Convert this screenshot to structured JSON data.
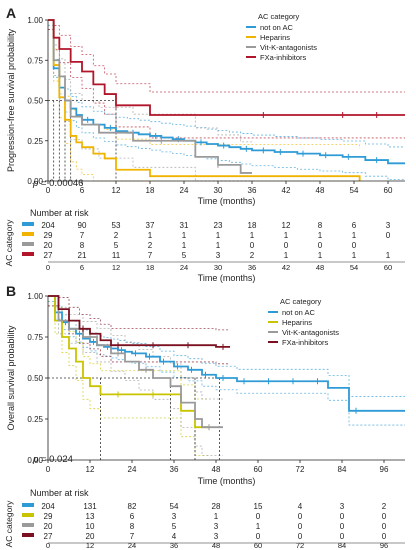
{
  "chart_data": [
    {
      "panel_label": "A",
      "type": "line",
      "subtype": "kaplan-meier",
      "title": "",
      "ylabel": "Progression-free survival probability",
      "xlabel": "Time (months)",
      "xlim": [
        0,
        63
      ],
      "ylim": [
        0,
        1
      ],
      "xticks": [
        0,
        6,
        12,
        18,
        24,
        30,
        36,
        42,
        48,
        54,
        60
      ],
      "yticks": [
        0.0,
        0.25,
        0.5,
        0.75,
        1.0
      ],
      "grid": false,
      "pvalue": "p = 0.00046",
      "legend_title": "AC category",
      "legend_position": "top-right",
      "median_markers_x": [
        1,
        2,
        3,
        4,
        12
      ],
      "series": [
        {
          "name": "not on AC",
          "color": "#2e9bd6",
          "x": [
            0,
            1,
            2,
            3,
            4,
            5,
            6,
            8,
            10,
            12,
            14,
            16,
            18,
            20,
            22,
            24,
            26,
            28,
            30,
            32,
            34,
            36,
            40,
            44,
            48,
            52,
            56,
            60,
            63
          ],
          "y": [
            1.0,
            0.7,
            0.58,
            0.5,
            0.45,
            0.41,
            0.38,
            0.35,
            0.33,
            0.31,
            0.3,
            0.29,
            0.28,
            0.27,
            0.26,
            0.25,
            0.24,
            0.23,
            0.22,
            0.21,
            0.2,
            0.19,
            0.18,
            0.17,
            0.16,
            0.15,
            0.13,
            0.11,
            0.11
          ],
          "censor_x": [
            7,
            11,
            15,
            19,
            23,
            27,
            31,
            35,
            38,
            41,
            45,
            49,
            53,
            58
          ]
        },
        {
          "name": "Heparins",
          "color": "#f0b400",
          "x": [
            0,
            1,
            2,
            3,
            4,
            5,
            6,
            8,
            10,
            12,
            14,
            16,
            18,
            24,
            30,
            36,
            42,
            54,
            55
          ],
          "y": [
            1.0,
            0.72,
            0.52,
            0.38,
            0.28,
            0.24,
            0.21,
            0.17,
            0.14,
            0.07,
            0.07,
            0.07,
            0.03,
            0.03,
            0.03,
            0.03,
            0.03,
            0.03,
            0.0
          ],
          "censor_x": []
        },
        {
          "name": "Vit-K-antagonists",
          "color": "#9a9a9a",
          "x": [
            0,
            1,
            2,
            3,
            4,
            6,
            9,
            12,
            15,
            18,
            24,
            26,
            30,
            34,
            36
          ],
          "y": [
            1.0,
            0.75,
            0.65,
            0.5,
            0.4,
            0.35,
            0.3,
            0.3,
            0.25,
            0.25,
            0.25,
            0.15,
            0.1,
            0.05,
            0.05
          ],
          "censor_x": [
            20,
            30
          ]
        },
        {
          "name": "FXa-inhibitors",
          "color": "#b0152a",
          "x": [
            0,
            1,
            2,
            4,
            6,
            8,
            10,
            12,
            14,
            16,
            18,
            63
          ],
          "y": [
            1.0,
            0.89,
            0.82,
            0.74,
            0.68,
            0.6,
            0.54,
            0.47,
            0.47,
            0.47,
            0.41,
            0.41
          ],
          "censor_x": [
            12,
            38,
            52,
            58
          ]
        }
      ],
      "risk_table": {
        "title": "Number at risk",
        "ylabel": "AC category",
        "time_points": [
          0,
          6,
          12,
          18,
          24,
          30,
          36,
          42,
          48,
          54,
          60
        ],
        "rows": [
          {
            "color": "#2e9bd6",
            "values": [
              "204",
              "90",
              "53",
              "37",
              "31",
              "23",
              "18",
              "12",
              "8",
              "6",
              "3"
            ]
          },
          {
            "color": "#f0b400",
            "values": [
              "29",
              "7",
              "2",
              "1",
              "1",
              "1",
              "1",
              "1",
              "1",
              "1",
              "0"
            ]
          },
          {
            "color": "#9a9a9a",
            "values": [
              "20",
              "8",
              "5",
              "2",
              "1",
              "1",
              "0",
              "0",
              "0",
              "0",
              ""
            ]
          },
          {
            "color": "#b0152a",
            "values": [
              "27",
              "21",
              "11",
              "7",
              "5",
              "3",
              "2",
              "1",
              "1",
              "1",
              "1"
            ]
          }
        ],
        "xlabel": "Time (months)"
      }
    },
    {
      "panel_label": "B",
      "type": "line",
      "subtype": "kaplan-meier",
      "title": "",
      "ylabel": "Overall survival probability",
      "xlabel": "Time (months)",
      "xlim": [
        0,
        102
      ],
      "ylim": [
        0,
        1
      ],
      "xticks": [
        0,
        12,
        24,
        36,
        48,
        60,
        72,
        84,
        96
      ],
      "yticks": [
        0.0,
        0.25,
        0.5,
        0.75,
        1.0
      ],
      "grid": false,
      "pvalue": "p = 0.024",
      "legend_title": "AC category",
      "legend_position": "top-right",
      "median_markers_x": [
        15,
        35,
        42,
        49
      ],
      "series": [
        {
          "name": "not on AC",
          "color": "#2e9bd6",
          "x": [
            0,
            2,
            4,
            6,
            8,
            10,
            12,
            14,
            16,
            18,
            20,
            22,
            24,
            28,
            32,
            36,
            40,
            44,
            48,
            54,
            60,
            66,
            72,
            80,
            84,
            86,
            96,
            102
          ],
          "y": [
            1.0,
            0.9,
            0.84,
            0.8,
            0.77,
            0.74,
            0.72,
            0.7,
            0.69,
            0.68,
            0.67,
            0.66,
            0.65,
            0.63,
            0.6,
            0.57,
            0.55,
            0.52,
            0.5,
            0.48,
            0.48,
            0.48,
            0.48,
            0.44,
            0.44,
            0.3,
            0.3,
            0.3
          ],
          "censor_x": [
            5,
            9,
            13,
            17,
            21,
            25,
            29,
            33,
            37,
            41,
            45,
            50,
            56,
            63,
            70,
            77,
            88
          ]
        },
        {
          "name": "Heparins",
          "color": "#c9c300",
          "x": [
            0,
            2,
            4,
            6,
            8,
            10,
            12,
            15,
            18,
            24,
            30,
            36,
            38,
            42,
            46
          ],
          "y": [
            1.0,
            0.85,
            0.75,
            0.68,
            0.6,
            0.5,
            0.45,
            0.4,
            0.4,
            0.4,
            0.4,
            0.4,
            0.3,
            0.2,
            0.2
          ],
          "censor_x": [
            20,
            30
          ]
        },
        {
          "name": "Vit-K-antagonists",
          "color": "#9a9a9a",
          "x": [
            0,
            3,
            6,
            10,
            14,
            18,
            22,
            26,
            30,
            35,
            38,
            42,
            44,
            50
          ],
          "y": [
            1.0,
            0.85,
            0.8,
            0.75,
            0.7,
            0.65,
            0.6,
            0.55,
            0.5,
            0.45,
            0.35,
            0.25,
            0.2,
            0.2
          ],
          "censor_x": [
            12,
            20,
            28,
            46
          ]
        },
        {
          "name": "FXa-inhibitors",
          "color": "#7a1020",
          "x": [
            0,
            3,
            6,
            9,
            12,
            15,
            18,
            24,
            30,
            36,
            42,
            48,
            52
          ],
          "y": [
            1.0,
            0.92,
            0.85,
            0.8,
            0.77,
            0.73,
            0.7,
            0.7,
            0.7,
            0.7,
            0.7,
            0.69,
            0.69
          ],
          "censor_x": [
            10,
            20,
            30,
            40,
            50
          ]
        }
      ],
      "risk_table": {
        "title": "Number at risk",
        "ylabel": "AC category",
        "time_points": [
          0,
          12,
          24,
          36,
          48,
          60,
          72,
          84,
          96
        ],
        "rows": [
          {
            "color": "#2e9bd6",
            "values": [
              "204",
              "131",
              "82",
              "54",
              "28",
              "15",
              "4",
              "3",
              "2"
            ]
          },
          {
            "color": "#c9c300",
            "values": [
              "29",
              "13",
              "6",
              "3",
              "1",
              "0",
              "0",
              "0",
              "0"
            ]
          },
          {
            "color": "#9a9a9a",
            "values": [
              "20",
              "10",
              "8",
              "5",
              "3",
              "1",
              "0",
              "0",
              "0"
            ]
          },
          {
            "color": "#7a1020",
            "values": [
              "27",
              "20",
              "7",
              "4",
              "3",
              "0",
              "0",
              "0",
              "0"
            ]
          }
        ],
        "xlabel": "Time (months)"
      }
    }
  ]
}
